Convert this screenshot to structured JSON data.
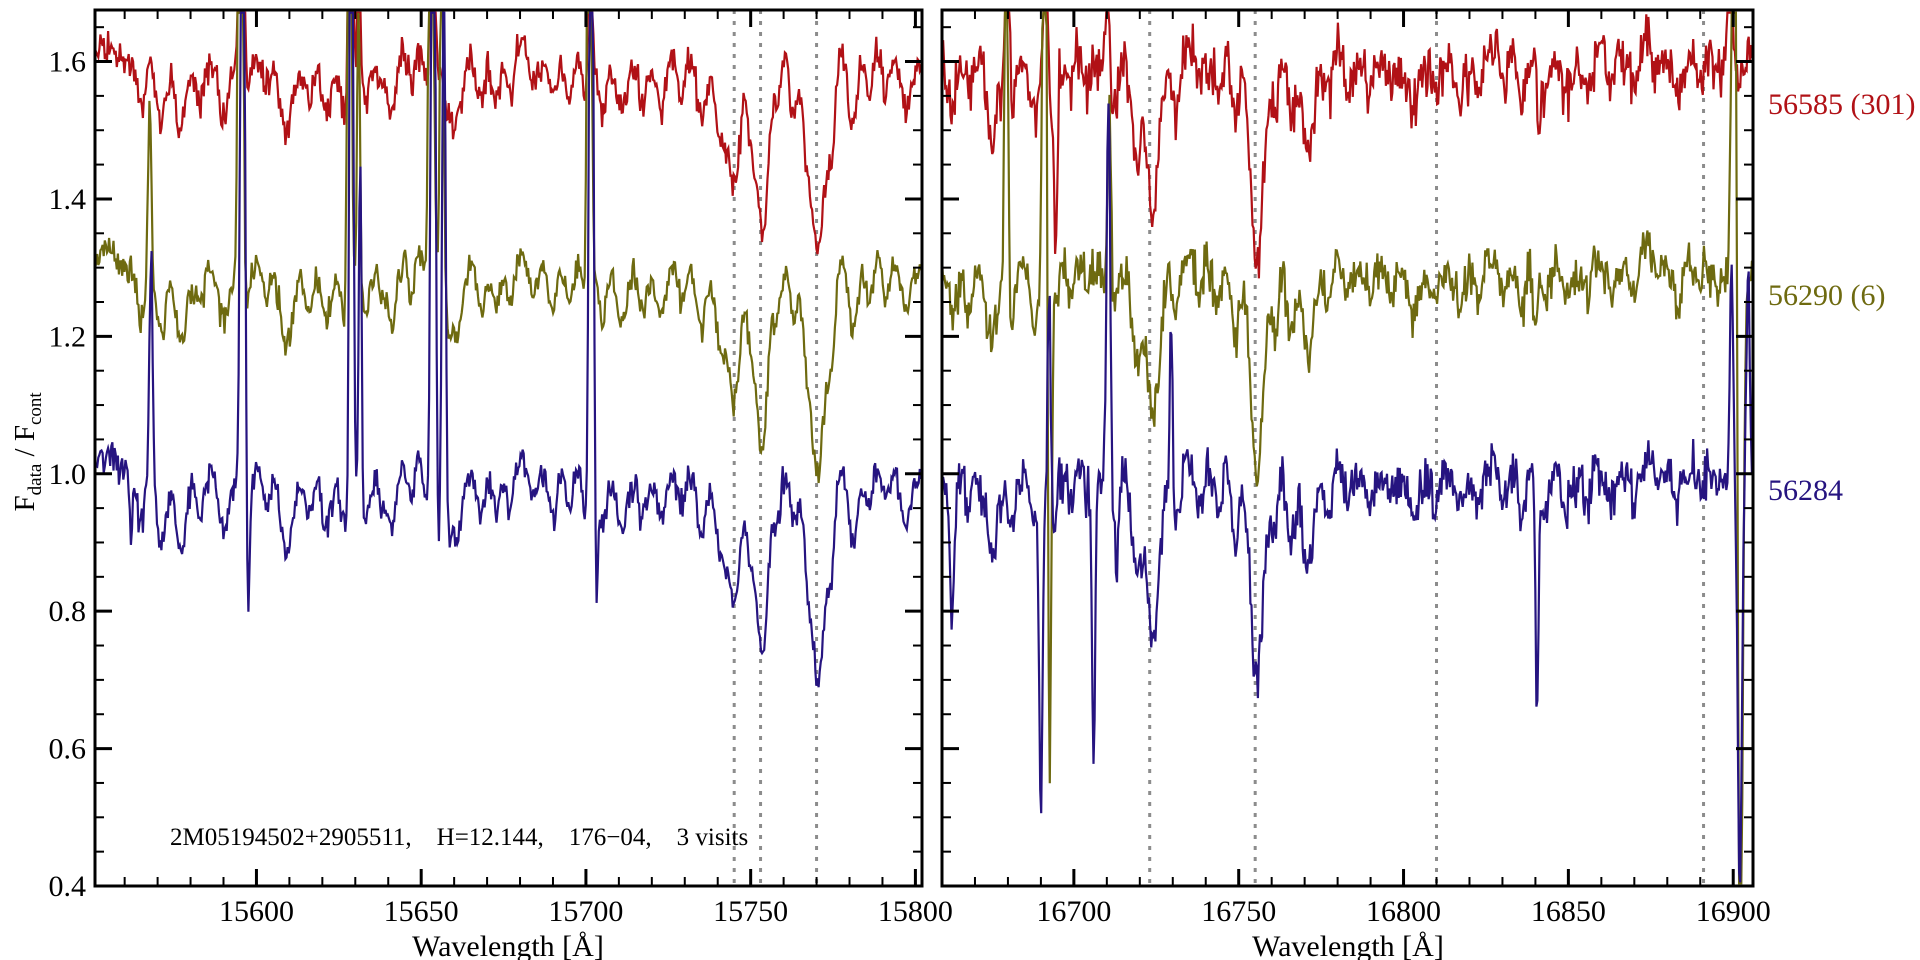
{
  "figure": {
    "background": "#ffffff",
    "annotation": "2M05194502+2905511,    H=12.144,    176−04,    3 visits",
    "x_axis_title": "Wavelength [Å]",
    "y_axis_title": {
      "sym": "F",
      "sub1": "data",
      "mid": " / F",
      "sub2": "cont"
    }
  },
  "chart_data": {
    "type": "line",
    "title": "",
    "xlabel": "Wavelength [Å]",
    "ylabel": "F_data / F_cont",
    "grid": false,
    "legend_position": "right-of-plot",
    "ylim": [
      0.4,
      1.675
    ],
    "yticks_major": [
      0.4,
      0.6,
      0.8,
      1.0,
      1.2,
      1.4,
      1.6
    ],
    "ytick_labels": [
      "0.4",
      "0.6",
      "0.8",
      "1.0",
      "1.2",
      "1.4",
      "1.6"
    ],
    "ytick_minor_step": 0.05,
    "axis_color": "#000000",
    "dashed_line_color": "#8c8c8c",
    "series": [
      {
        "label": "56284",
        "color": "#261480",
        "offset": 0.0,
        "continuum": 1.0,
        "noise": [
          0.013,
          0.021
        ],
        "depth_scale": 1.0
      },
      {
        "label": "56290 (6)",
        "color": "#6e6a10",
        "offset": 0.3,
        "continuum": 1.3,
        "noise": [
          0.013,
          0.021
        ],
        "depth_scale": 1.0
      },
      {
        "label": "56585 (301)",
        "color": "#b11116",
        "offset": 0.6,
        "continuum": 1.6,
        "noise": [
          0.016,
          0.024
        ],
        "depth_scale": 0.93
      }
    ],
    "panels": [
      {
        "xlim": [
          15551,
          15802
        ],
        "xticks_major": [
          15600,
          15650,
          15700,
          15750,
          15800
        ],
        "xtick_minor_step": 10,
        "dashed_lines": [
          15745,
          15753,
          15770
        ],
        "absorption_features": [
          [
            15565,
            0.07,
            1.2
          ],
          [
            15571,
            0.1,
            1.5
          ],
          [
            15577,
            0.09,
            1.3
          ],
          [
            15583,
            0.05,
            1.0
          ],
          [
            15590,
            0.08,
            1.4
          ],
          [
            15597,
            0.06,
            1.0
          ],
          [
            15603,
            0.05,
            1.0
          ],
          [
            15609,
            0.1,
            1.8
          ],
          [
            15616,
            0.06,
            1.2
          ],
          [
            15621,
            0.07,
            1.2
          ],
          [
            15627,
            0.07,
            1.0
          ],
          [
            15633,
            0.08,
            1.4
          ],
          [
            15638,
            0.05,
            1.0
          ],
          [
            15641,
            0.08,
            1.2
          ],
          [
            15647,
            0.06,
            1.0
          ],
          [
            15652,
            0.06,
            1.0
          ],
          [
            15658,
            0.07,
            1.2
          ],
          [
            15661,
            0.09,
            1.6
          ],
          [
            15668,
            0.06,
            1.2
          ],
          [
            15673,
            0.05,
            1.0
          ],
          [
            15677,
            0.06,
            1.0
          ],
          [
            15684,
            0.05,
            1.2
          ],
          [
            15690,
            0.07,
            1.3
          ],
          [
            15695,
            0.07,
            1.2
          ],
          [
            15700,
            0.06,
            1.0
          ],
          [
            15705,
            0.06,
            1.0
          ],
          [
            15711,
            0.08,
            1.4
          ],
          [
            15717,
            0.05,
            1.0
          ],
          [
            15723,
            0.06,
            1.2
          ],
          [
            15729,
            0.06,
            1.1
          ],
          [
            15735,
            0.08,
            1.3
          ],
          [
            15741,
            0.12,
            1.5
          ],
          [
            15745,
            0.19,
            1.7
          ],
          [
            15750,
            0.08,
            1.0
          ],
          [
            15753.5,
            0.25,
            1.7
          ],
          [
            15758,
            0.07,
            1.0
          ],
          [
            15763,
            0.07,
            1.0
          ],
          [
            15767,
            0.09,
            1.2
          ],
          [
            15770.5,
            0.3,
            2.0
          ],
          [
            15774.5,
            0.13,
            1.2
          ],
          [
            15781,
            0.1,
            1.3
          ],
          [
            15786,
            0.06,
            1.0
          ],
          [
            15791,
            0.06,
            1.0
          ],
          [
            15797,
            0.06,
            1.2
          ]
        ],
        "emission_spikes": [
          [
            [
              15568,
              0.33,
              0.5
            ],
            [
              15562,
              -0.1,
              0.4
            ],
            [
              15595.8,
              1.3,
              0.6
            ],
            [
              15597.5,
              -0.16,
              0.45
            ],
            [
              15628.8,
              1.3,
              0.5
            ],
            [
              15631.5,
              0.5,
              0.4
            ],
            [
              15653.6,
              1.3,
              0.6
            ],
            [
              15656.9,
              0.8,
              0.5
            ],
            [
              15655.2,
              -0.12,
              0.4
            ],
            [
              15701.6,
              1.3,
              0.55
            ],
            [
              15703.2,
              -0.17,
              0.4
            ]
          ],
          [
            [
              15567.6,
              0.24,
              0.5
            ],
            [
              15595.2,
              1.3,
              0.6
            ],
            [
              15628.2,
              1.3,
              0.5
            ],
            [
              15631.0,
              0.45,
              0.4
            ],
            [
              15653.0,
              1.2,
              0.6
            ],
            [
              15656.3,
              0.7,
              0.5
            ],
            [
              15701.0,
              1.2,
              0.55
            ]
          ],
          [
            [
              15595.5,
              0.9,
              0.6
            ],
            [
              15628.5,
              0.9,
              0.5
            ],
            [
              15631.2,
              0.3,
              0.4
            ],
            [
              15653.3,
              0.5,
              0.5
            ],
            [
              15701.3,
              0.35,
              0.5
            ]
          ]
        ]
      },
      {
        "xlim": [
          16660,
          16906
        ],
        "xticks_major": [
          16700,
          16750,
          16800,
          16850,
          16900
        ],
        "xtick_minor_step": 10,
        "dashed_lines": [
          16723,
          16755,
          16810,
          16891
        ],
        "absorption_features": [
          [
            16663,
            0.06,
            1.0
          ],
          [
            16668,
            0.05,
            1.0
          ],
          [
            16675,
            0.1,
            1.5
          ],
          [
            16681,
            0.06,
            1.0
          ],
          [
            16688,
            0.08,
            1.3
          ],
          [
            16693,
            0.09,
            1.3
          ],
          [
            16699,
            0.06,
            1.0
          ],
          [
            16704,
            0.05,
            1.0
          ],
          [
            16712,
            0.07,
            1.2
          ],
          [
            16719,
            0.15,
            1.5
          ],
          [
            16724,
            0.22,
            1.8
          ],
          [
            16731,
            0.08,
            1.2
          ],
          [
            16738,
            0.05,
            1.0
          ],
          [
            16744,
            0.07,
            1.0
          ],
          [
            16749,
            0.12,
            1.3
          ],
          [
            16755.5,
            0.3,
            1.9
          ],
          [
            16761,
            0.08,
            1.0
          ],
          [
            16766,
            0.09,
            1.2
          ],
          [
            16771,
            0.11,
            1.5
          ],
          [
            16777,
            0.06,
            1.0
          ],
          [
            16783,
            0.05,
            1.0
          ],
          [
            16790,
            0.04,
            1.0
          ],
          [
            16796,
            0.05,
            1.0
          ],
          [
            16803,
            0.05,
            1.0
          ],
          [
            16810,
            0.04,
            1.0
          ],
          [
            16817,
            0.04,
            1.0
          ],
          [
            16823,
            0.05,
            1.0
          ],
          [
            16830,
            0.05,
            1.0
          ],
          [
            16836,
            0.05,
            1.0
          ],
          [
            16843,
            0.07,
            1.0
          ],
          [
            16849,
            0.04,
            1.0
          ],
          [
            16856,
            0.05,
            1.0
          ],
          [
            16863,
            0.04,
            1.0
          ],
          [
            16870,
            0.05,
            1.0
          ],
          [
            16877,
            0.04,
            1.0
          ],
          [
            16883,
            0.05,
            1.0
          ],
          [
            16890,
            0.04,
            1.0
          ]
        ],
        "emission_spikes": [
          [
            [
              16663,
              -0.14,
              0.5
            ],
            [
              16690,
              -0.46,
              0.5
            ],
            [
              16692.5,
              0.35,
              0.5
            ],
            [
              16706,
              -0.44,
              0.45
            ],
            [
              16710.5,
              0.62,
              0.55
            ],
            [
              16713,
              -0.1,
              0.4
            ],
            [
              16729.5,
              0.25,
              0.45
            ],
            [
              16840.5,
              -0.38,
              0.45
            ],
            [
              16899.5,
              0.35,
              0.5
            ],
            [
              16902,
              -0.6,
              0.6
            ],
            [
              16904.5,
              0.3,
              0.5
            ]
          ],
          [
            [
              16679.5,
              0.6,
              0.5
            ],
            [
              16691.2,
              0.85,
              0.6
            ],
            [
              16692.6,
              -0.7,
              0.5
            ],
            [
              16710.8,
              0.3,
              0.5
            ],
            [
              16840,
              -0.12,
              0.5
            ],
            [
              16900.6,
              1.3,
              0.8
            ],
            [
              16901.8,
              -1.4,
              0.9
            ]
          ],
          [
            [
              16679.8,
              0.5,
              0.5
            ],
            [
              16691.5,
              0.4,
              0.5
            ],
            [
              16694.5,
              -0.22,
              0.5
            ],
            [
              16710.2,
              0.2,
              0.5
            ],
            [
              16841,
              -0.1,
              0.5
            ],
            [
              16899,
              0.3,
              0.6
            ]
          ]
        ]
      }
    ]
  }
}
